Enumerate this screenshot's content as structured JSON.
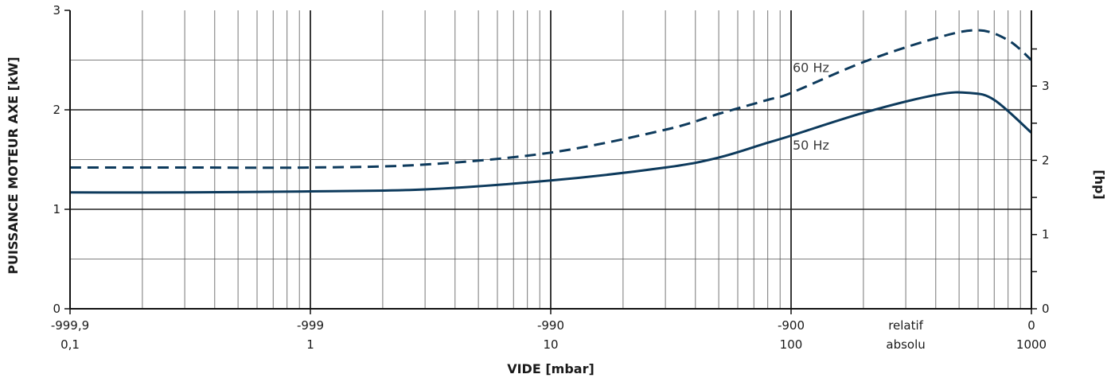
{
  "chart_data": {
    "type": "line",
    "xscale": "log",
    "xlim": [
      0.1,
      1000
    ],
    "ylim": [
      0,
      3
    ],
    "y2lim": [
      0,
      4.02
    ],
    "grid": true,
    "xlabel": "VIDE  [mbar]",
    "ylabel": "PUISSANCE MOTEUR AXE  [kW]",
    "y2label": "[hp]",
    "x_ticks_relative": [
      {
        "x": 0.1,
        "label": "-999,9"
      },
      {
        "x": 1,
        "label": "-999"
      },
      {
        "x": 10,
        "label": "-990"
      },
      {
        "x": 100,
        "label": "-900"
      },
      {
        "x": 1000,
        "label": "0"
      }
    ],
    "x_ticks_absolute": [
      {
        "x": 0.1,
        "label": "0,1"
      },
      {
        "x": 1,
        "label": "1"
      },
      {
        "x": 10,
        "label": "10"
      },
      {
        "x": 100,
        "label": "100"
      },
      {
        "x": 1000,
        "label": "1000"
      }
    ],
    "x_row_labels": {
      "x": 300,
      "relative": "relatif",
      "absolute": "absolu"
    },
    "y_ticks": [
      "0",
      "1",
      "2",
      "3"
    ],
    "y2_ticks": [
      "0",
      "1",
      "2",
      "3"
    ],
    "series": [
      {
        "name": "50 Hz",
        "style": "solid",
        "color": "#0d3a5c",
        "x": [
          0.1,
          0.3,
          1,
          3,
          10,
          30,
          50,
          80,
          100,
          200,
          400,
          550,
          700,
          1000
        ],
        "y": [
          1.17,
          1.17,
          1.18,
          1.2,
          1.29,
          1.42,
          1.52,
          1.67,
          1.74,
          1.97,
          2.15,
          2.17,
          2.1,
          1.77
        ]
      },
      {
        "name": "60 Hz",
        "style": "dashed",
        "color": "#0d3a5c",
        "x": [
          0.1,
          0.3,
          1,
          3,
          10,
          30,
          50,
          80,
          100,
          200,
          400,
          600,
          800,
          1000
        ],
        "y": [
          1.42,
          1.42,
          1.42,
          1.45,
          1.57,
          1.8,
          1.96,
          2.1,
          2.17,
          2.48,
          2.72,
          2.8,
          2.7,
          2.5
        ]
      }
    ],
    "annotations": [
      {
        "text": "60 Hz",
        "x": 100,
        "y": 2.38
      },
      {
        "text": "50 Hz",
        "x": 100,
        "y": 1.6
      }
    ]
  }
}
